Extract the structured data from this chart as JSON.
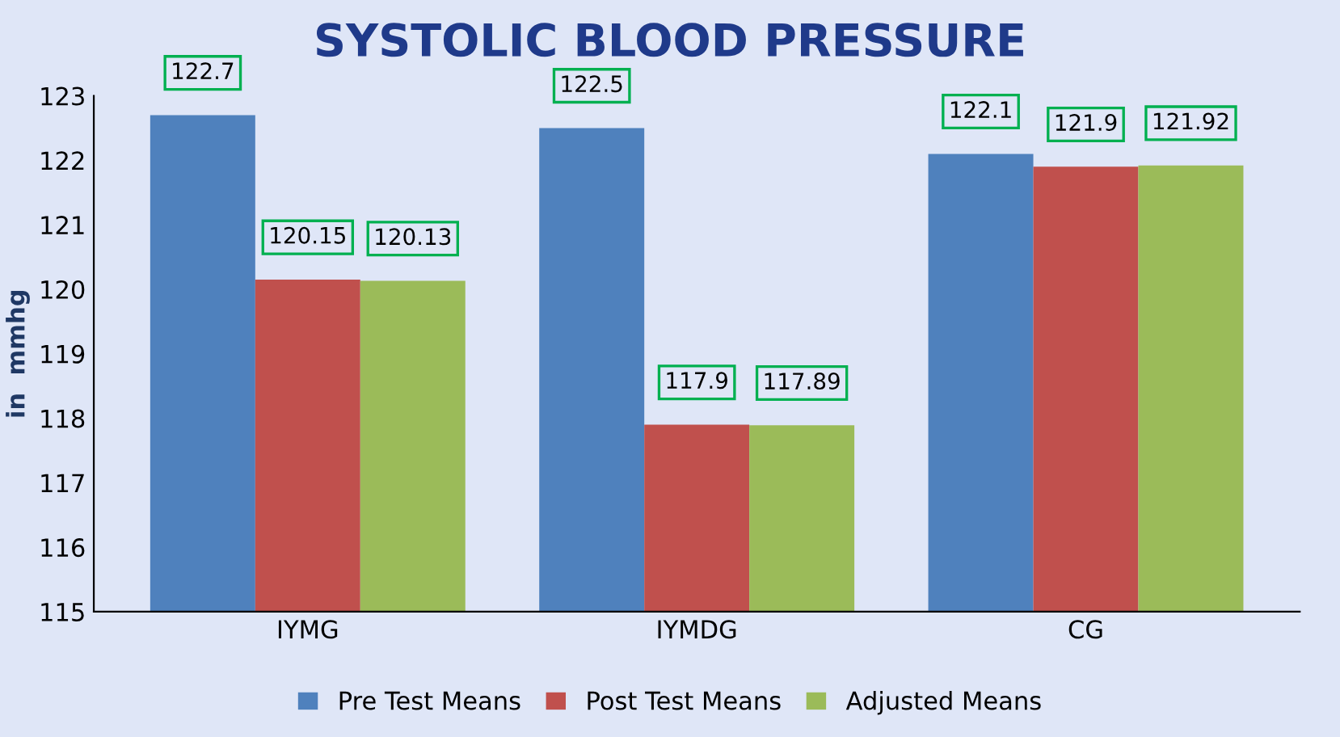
{
  "chart_data": {
    "type": "bar",
    "title": "SYSTOLIC BLOOD PRESSURE",
    "ylabel": "in  mmhg",
    "categories": [
      "IYMG",
      "IYMDG",
      "CG"
    ],
    "series": [
      {
        "name": "Pre Test Means",
        "color": "#4f81bd",
        "values": [
          122.7,
          122.5,
          122.1
        ]
      },
      {
        "name": "Post Test Means",
        "color": "#c0504d",
        "values": [
          120.15,
          117.9,
          121.9
        ]
      },
      {
        "name": "Adjusted Means",
        "color": "#9bbb59",
        "values": [
          120.13,
          117.89,
          121.92
        ]
      }
    ],
    "ylim": [
      115,
      123
    ],
    "yticks": [
      115,
      116,
      117,
      118,
      119,
      120,
      121,
      122,
      123
    ],
    "data_labels": true,
    "legend": "bottom",
    "grid": false
  }
}
